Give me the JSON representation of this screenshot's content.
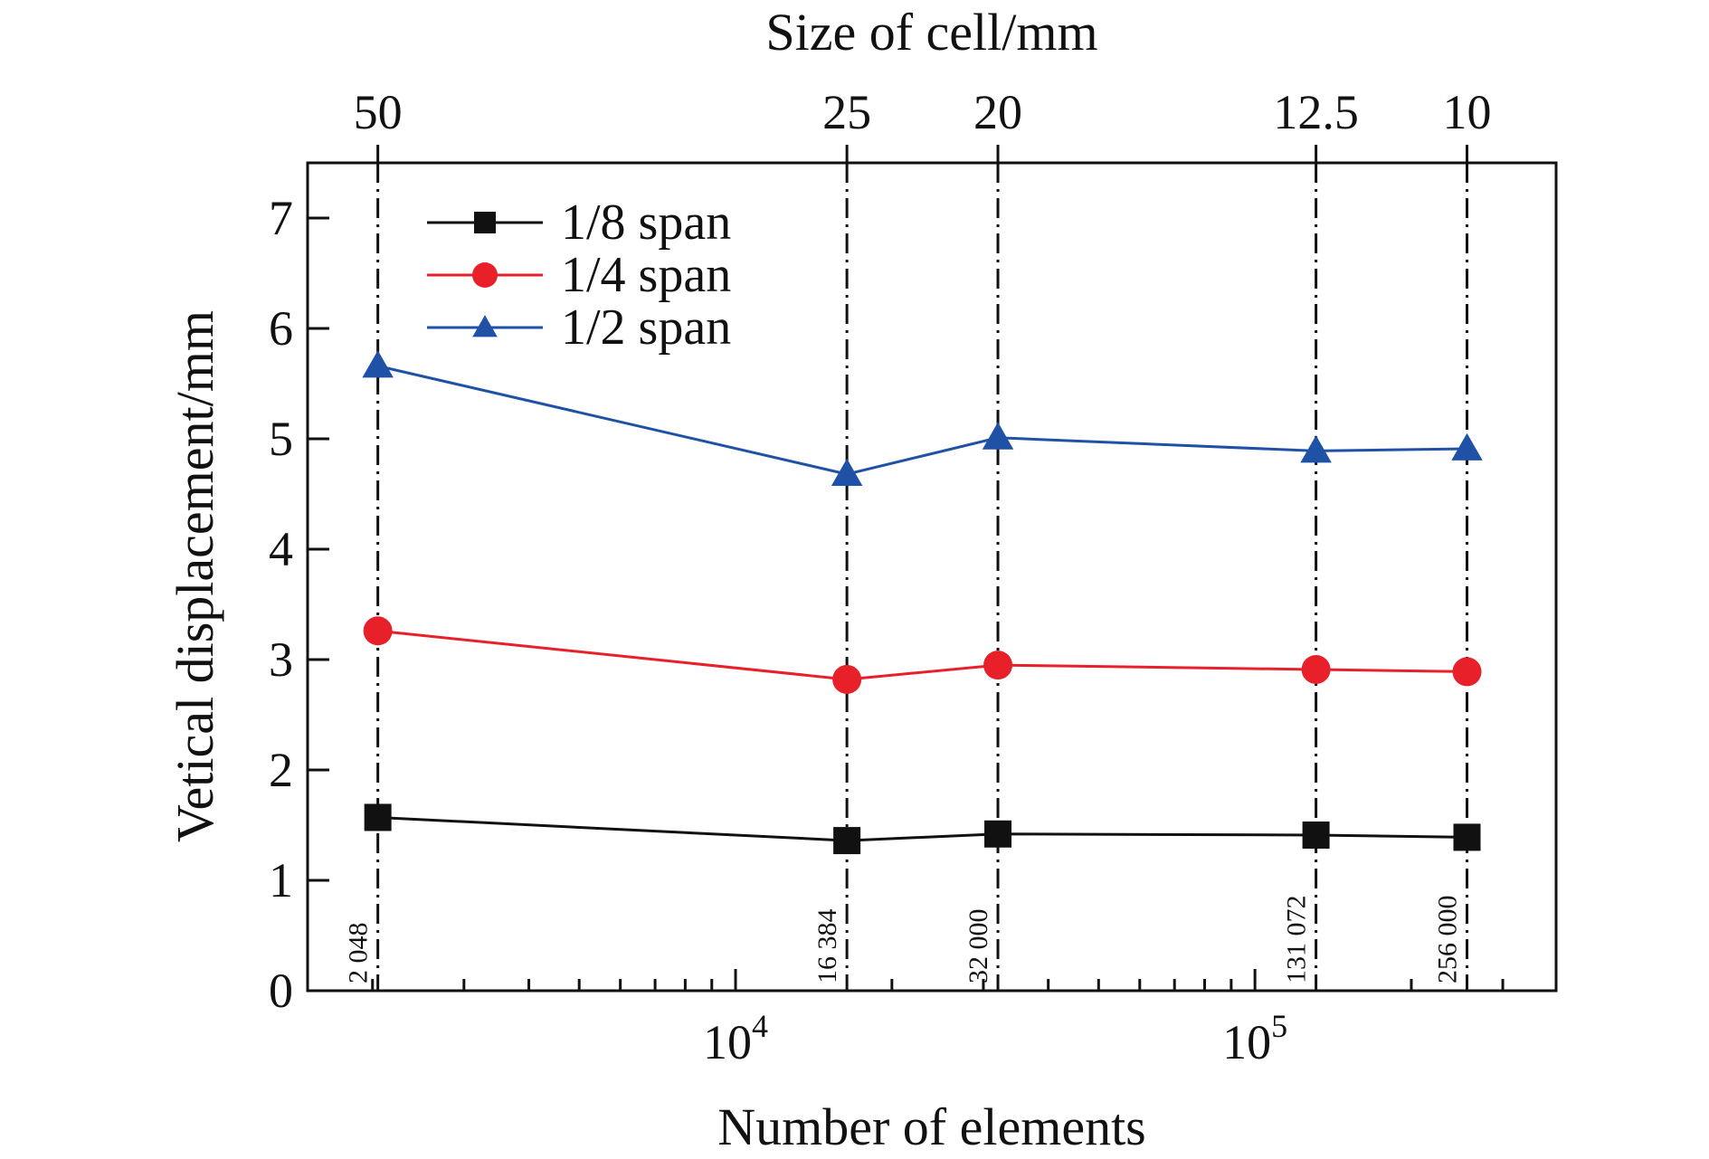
{
  "chart_data": {
    "type": "line",
    "xlabel": "Number of elements",
    "ylabel": "Vetical displacement/mm",
    "top_xlabel": "Size of cell/mm",
    "x_scale": "log",
    "xlim": [
      1500,
      380000
    ],
    "ylim": [
      0,
      7.5
    ],
    "y_ticks": [
      0,
      1,
      2,
      3,
      4,
      5,
      6,
      7
    ],
    "x_ticks": [
      {
        "value": 10000,
        "base": "10",
        "exp": "4"
      },
      {
        "value": 100000,
        "base": "10",
        "exp": "5"
      }
    ],
    "x": [
      2048,
      16384,
      32000,
      131072,
      256000
    ],
    "x_point_labels": [
      "2 048",
      "16 384",
      "32 000",
      "131 072",
      "256 000"
    ],
    "top_tick_labels": [
      "50",
      "25",
      "20",
      "12.5",
      "10"
    ],
    "grid": false,
    "legend_position": "top-left",
    "series": [
      {
        "name": "1/8 span",
        "marker": "square",
        "color": "#111111",
        "values": [
          1.57,
          1.36,
          1.42,
          1.41,
          1.39
        ]
      },
      {
        "name": "1/4 span",
        "marker": "circle",
        "color": "#e8202a",
        "values": [
          3.26,
          2.82,
          2.95,
          2.91,
          2.89
        ]
      },
      {
        "name": "1/2 span",
        "marker": "triangle",
        "color": "#1f52a6",
        "values": [
          5.66,
          4.68,
          5.01,
          4.89,
          4.91
        ]
      }
    ]
  }
}
